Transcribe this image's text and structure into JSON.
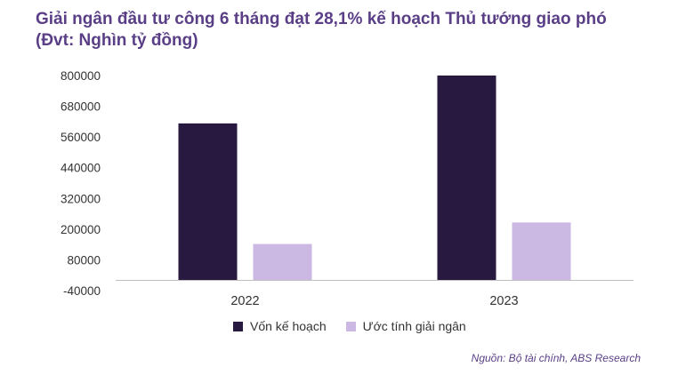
{
  "title_line1": "Giải ngân đầu tư công 6 tháng đạt 28,1% kế hoạch Thủ tướng giao phó",
  "title_line2": "(Đvt: Nghìn tỷ đồng)",
  "source": "Nguồn: Bộ tài chính, ABS Research",
  "chart_data": {
    "type": "bar",
    "categories": [
      "2022",
      "2023"
    ],
    "series": [
      {
        "name": "Vốn kế hoạch",
        "values": [
          613000,
          800000
        ],
        "color": "#27193f"
      },
      {
        "name": "Ước tính giải ngân",
        "values": [
          142000,
          226000
        ],
        "color": "#cbb9e4"
      }
    ],
    "yticks": [
      "800000",
      "680000",
      "560000",
      "440000",
      "320000",
      "200000",
      "80000",
      "-40000"
    ],
    "ytick_values": [
      800000,
      680000,
      560000,
      440000,
      320000,
      200000,
      80000,
      -40000
    ],
    "ylim": [
      -40000,
      800000
    ],
    "baseline": 0,
    "grid": false,
    "legend_position": "bottom"
  }
}
